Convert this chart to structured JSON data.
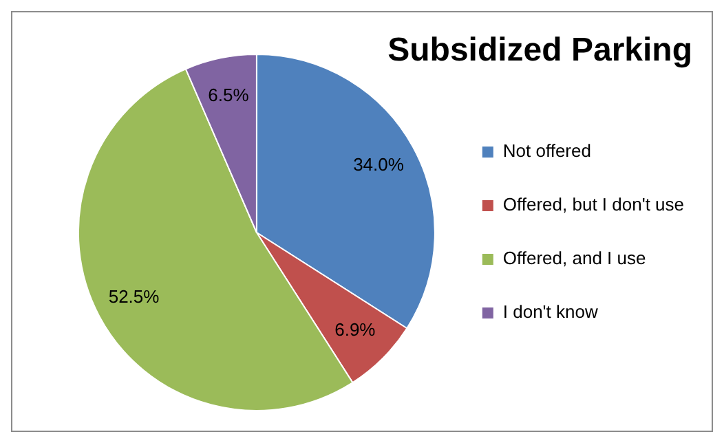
{
  "chart_data": {
    "type": "pie",
    "title": "Subsidized Parking",
    "categories": [
      "Not offered",
      "Offered, but I don't use",
      "Offered, and I use",
      "I don't know"
    ],
    "values": [
      34.0,
      6.9,
      52.5,
      6.5
    ],
    "value_labels": [
      "34.0%",
      "6.9%",
      "52.5%",
      "6.5%"
    ],
    "colors": [
      "#4f81bd",
      "#c0504d",
      "#9bbb59",
      "#8064a2"
    ],
    "legend": "right"
  }
}
